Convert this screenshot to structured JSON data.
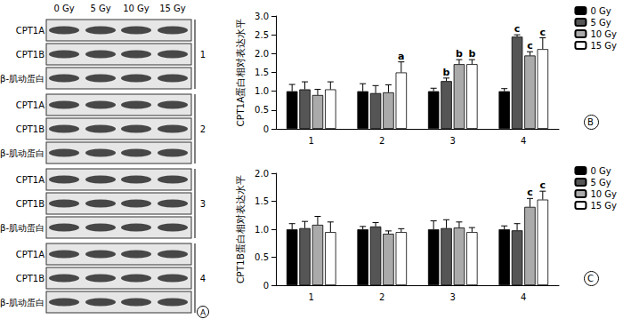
{
  "chart_data": [
    {
      "type": "bar",
      "panel_label": "B",
      "y_label": "CPT1A蛋白相对表达水平",
      "categories": [
        "1",
        "2",
        "3",
        "4"
      ],
      "series": [
        {
          "name": "0 Gy",
          "color": "#000000",
          "values": [
            1.0,
            1.0,
            1.0,
            1.0
          ],
          "errors": [
            0.18,
            0.2,
            0.08,
            0.07
          ],
          "annotations": [
            null,
            null,
            null,
            null
          ]
        },
        {
          "name": "5 Gy",
          "color": "#555555",
          "values": [
            1.05,
            0.95,
            1.27,
            2.45
          ],
          "errors": [
            0.2,
            0.2,
            0.08,
            0.05
          ],
          "annotations": [
            null,
            null,
            "b",
            "c"
          ]
        },
        {
          "name": "10 Gy",
          "color": "#aaaaaa",
          "values": [
            0.9,
            0.97,
            1.72,
            1.95
          ],
          "errors": [
            0.15,
            0.2,
            0.12,
            0.1
          ],
          "annotations": [
            null,
            null,
            "b",
            "c"
          ]
        },
        {
          "name": "15 Gy",
          "color": "#ffffff",
          "values": [
            1.05,
            1.5,
            1.72,
            2.12
          ],
          "errors": [
            0.2,
            0.28,
            0.12,
            0.3
          ],
          "annotations": [
            null,
            "a",
            "b",
            "c"
          ]
        }
      ],
      "ylim": [
        0,
        3.0
      ],
      "yticks": [
        0,
        0.5,
        {
          "value": 1.0,
          "label": "1.0"
        },
        1.5,
        {
          "value": 2.0,
          "label": "2.0"
        },
        2.5,
        {
          "value": 3.0,
          "label": "3.0"
        }
      ],
      "grid": false,
      "legend": "upper right"
    },
    {
      "type": "bar",
      "panel_label": "C",
      "y_label": "CPT1B蛋白相对表达水平",
      "categories": [
        "1",
        "2",
        "3",
        "4"
      ],
      "series": [
        {
          "name": "0 Gy",
          "color": "#000000",
          "values": [
            1.0,
            1.0,
            1.0,
            1.0
          ],
          "errors": [
            0.1,
            0.05,
            0.15,
            0.06
          ],
          "annotations": [
            null,
            null,
            null,
            null
          ]
        },
        {
          "name": "5 Gy",
          "color": "#555555",
          "values": [
            1.02,
            1.05,
            1.02,
            0.98
          ],
          "errors": [
            0.12,
            0.07,
            0.15,
            0.12
          ],
          "annotations": [
            null,
            null,
            null,
            null
          ]
        },
        {
          "name": "10 Gy",
          "color": "#aaaaaa",
          "values": [
            1.08,
            0.92,
            1.03,
            1.4
          ],
          "errors": [
            0.15,
            0.05,
            0.1,
            0.15
          ],
          "annotations": [
            null,
            null,
            null,
            "c"
          ]
        },
        {
          "name": "15 Gy",
          "color": "#ffffff",
          "values": [
            0.95,
            0.95,
            0.95,
            1.53
          ],
          "errors": [
            0.18,
            0.06,
            0.08,
            0.15
          ],
          "annotations": [
            null,
            null,
            null,
            "c"
          ]
        }
      ],
      "ylim": [
        0,
        2.0
      ],
      "yticks": [
        0,
        0.5,
        {
          "value": 1.0,
          "label": "1.0"
        },
        1.5,
        {
          "value": 2.0,
          "label": "2.0"
        }
      ],
      "grid": false,
      "legend": "upper right"
    }
  ],
  "blot": {
    "panel_label": "A",
    "lanes": [
      "0 Gy",
      "5 Gy",
      "10 Gy",
      "15 Gy"
    ],
    "groups": [
      {
        "label": "1",
        "rows": [
          "CPT1A",
          "CPT1B",
          "β-肌动蛋白"
        ]
      },
      {
        "label": "2",
        "rows": [
          "CPT1A",
          "CPT1B",
          "β-肌动蛋白"
        ]
      },
      {
        "label": "3",
        "rows": [
          "CPT1A",
          "CPT1B",
          "β-肌动蛋白"
        ]
      },
      {
        "label": "4",
        "rows": [
          "CPT1A",
          "CPT1B",
          "β-肌动蛋白"
        ]
      }
    ]
  }
}
